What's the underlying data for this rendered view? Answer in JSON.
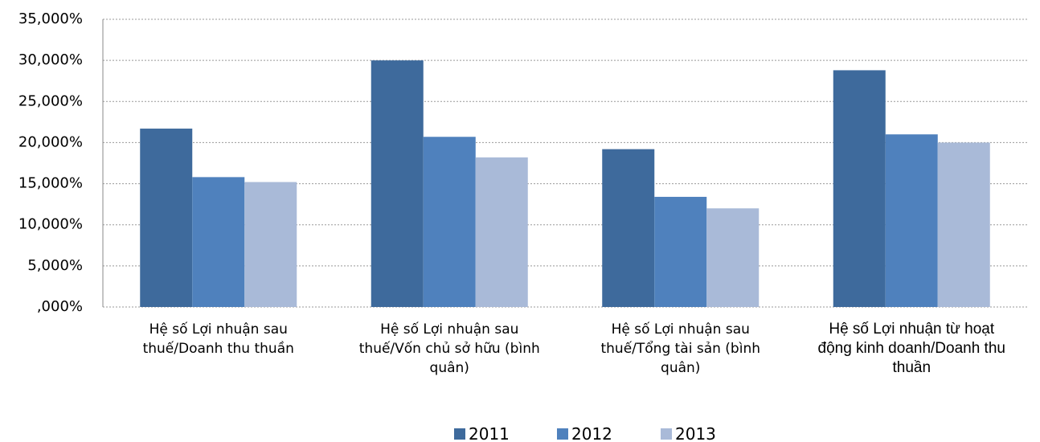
{
  "chart_data": {
    "type": "bar",
    "categories": [
      "Hệ số Lợi nhuận sau thuế/Doanh thu thuần",
      "Hệ số Lợi nhuận sau thuế/Vốn chủ sở hữu (bình quân)",
      "Hệ số Lợi nhuận sau thuế/Tổng tài sản (bình quân)",
      "Hệ số Lợi nhuận từ hoạt động kinh doanh/Doanh thu thuần"
    ],
    "series": [
      {
        "name": "2011",
        "color": "#3e6a9c",
        "values": [
          21.7,
          30.0,
          19.2,
          28.8
        ]
      },
      {
        "name": "2012",
        "color": "#4f81bd",
        "values": [
          15.8,
          20.7,
          13.4,
          21.0
        ]
      },
      {
        "name": "2013",
        "color": "#a9bad8",
        "values": [
          15.2,
          18.2,
          12.0,
          20.0
        ]
      }
    ],
    "ylim": [
      0,
      35
    ],
    "yticks": [
      {
        "value": 0,
        "label": ",000%"
      },
      {
        "value": 5,
        "label": "5,000%"
      },
      {
        "value": 10,
        "label": "10,000%"
      },
      {
        "value": 15,
        "label": "15,000%"
      },
      {
        "value": 20,
        "label": "20,000%"
      },
      {
        "value": 25,
        "label": "25,000%"
      },
      {
        "value": 30,
        "label": "30,000%"
      },
      {
        "value": 35,
        "label": "35,000%"
      }
    ],
    "grid": true,
    "legend": "bottom"
  }
}
